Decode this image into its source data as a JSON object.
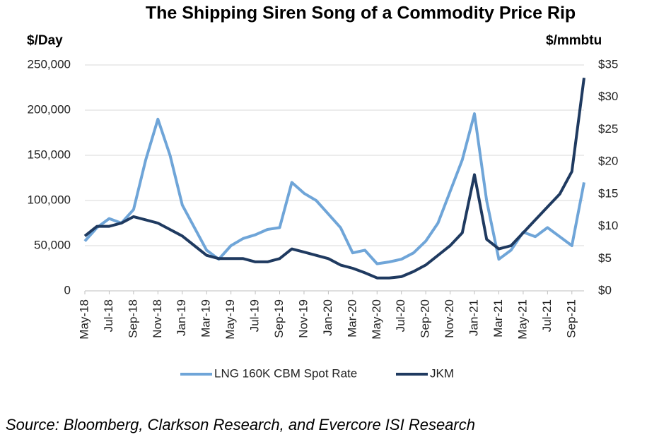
{
  "chart_data": {
    "type": "line",
    "title": "The Shipping Siren Song of a Commodity Price Rip",
    "ylabel": "$/Day",
    "y2label": "$/mmbtu",
    "source": "Source: Bloomberg, Clarkson Research, and Evercore ISI Research",
    "categories": [
      "May-18",
      null,
      "Jul-18",
      null,
      "Sep-18",
      null,
      "Nov-18",
      null,
      "Jan-19",
      null,
      "Mar-19",
      null,
      "May-19",
      null,
      "Jul-19",
      null,
      "Sep-19",
      null,
      "Nov-19",
      null,
      "Jan-20",
      null,
      "Mar-20",
      null,
      "May-20",
      null,
      "Jul-20",
      null,
      "Sep-20",
      null,
      "Nov-20",
      null,
      "Jan-21",
      null,
      "Mar-21",
      null,
      "May-21",
      null,
      "Jul-21",
      null,
      "Sep-21",
      null
    ],
    "series": [
      {
        "name": "LNG 160K CBM Spot Rate",
        "color": "#6fa5d8",
        "axis": "y",
        "values": [
          55000,
          70000,
          80000,
          75000,
          90000,
          145000,
          190000,
          150000,
          95000,
          70000,
          45000,
          35000,
          50000,
          58000,
          62000,
          68000,
          70000,
          120000,
          108000,
          100000,
          85000,
          70000,
          42000,
          45000,
          30000,
          32000,
          35000,
          42000,
          55000,
          75000,
          110000,
          145000,
          196000,
          100000,
          35000,
          45000,
          65000,
          60000,
          70000,
          60000,
          50000,
          120000
        ]
      },
      {
        "name": "JKM",
        "color": "#1f3a60",
        "axis": "y2",
        "values": [
          8.5,
          10,
          10,
          10.5,
          11.5,
          11,
          10.5,
          9.5,
          8.5,
          7,
          5.5,
          5,
          5,
          5,
          4.5,
          4.5,
          5,
          6.5,
          6,
          5.5,
          5,
          4,
          3.5,
          2.8,
          2,
          2,
          2.2,
          3,
          4,
          5.5,
          7,
          9,
          18,
          8,
          6.5,
          7,
          9,
          11,
          13,
          15,
          18.5,
          33
        ]
      }
    ],
    "ylim": [
      0,
      250000
    ],
    "yticks": [
      0,
      {
        "value": 50000,
        "label": "50,000"
      },
      {
        "value": 100000,
        "label": "100,000"
      },
      {
        "value": 150000,
        "label": "150,000"
      },
      {
        "value": 200000,
        "label": "200,000"
      },
      {
        "value": 250000,
        "label": "250,000"
      }
    ],
    "y2lim": [
      0,
      35
    ],
    "y2ticks": [
      {
        "value": 0,
        "label": "$0"
      },
      {
        "value": 5,
        "label": "$5"
      },
      {
        "value": 10,
        "label": "$10"
      },
      {
        "value": 15,
        "label": "$15"
      },
      {
        "value": 20,
        "label": "$20"
      },
      {
        "value": 25,
        "label": "$25"
      },
      {
        "value": 30,
        "label": "$30"
      },
      {
        "value": 35,
        "label": "$35"
      }
    ],
    "grid": true,
    "legend": "bottom"
  }
}
